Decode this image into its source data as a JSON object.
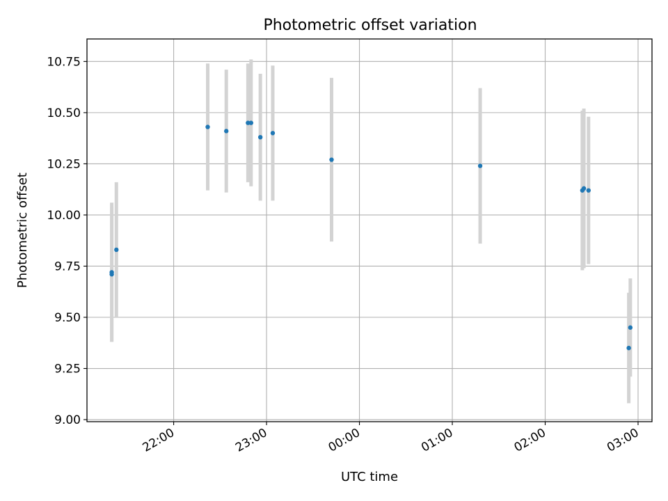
{
  "chart_data": {
    "type": "scatter",
    "title": "Photometric offset variation",
    "xlabel": "UTC time",
    "ylabel": "Photometric offset",
    "x_unit": "UTC clock time (hours after 00:00; values past midnight continue above 24)",
    "xlim": [
      "21:04",
      "03:09"
    ],
    "ylim": [
      8.99,
      10.86
    ],
    "x_ticks": [
      {
        "label": "22:00",
        "hour": 22
      },
      {
        "label": "23:00",
        "hour": 23
      },
      {
        "label": "00:00",
        "hour": 24
      },
      {
        "label": "01:00",
        "hour": 25
      },
      {
        "label": "02:00",
        "hour": 26
      },
      {
        "label": "03:00",
        "hour": 27
      }
    ],
    "y_ticks": [
      "9.00",
      "9.25",
      "9.50",
      "9.75",
      "10.00",
      "10.25",
      "10.50",
      "10.75"
    ],
    "grid": true,
    "errorbar_color": "#d3d3d3",
    "point_color": "#1f77b4",
    "series": [
      {
        "points": [
          {
            "time": "21:20",
            "y": 9.72,
            "err": 0.34
          },
          {
            "time": "21:20",
            "y": 9.71,
            "err": 0.33
          },
          {
            "time": "21:23",
            "y": 9.83,
            "err": 0.33
          },
          {
            "time": "22:22",
            "y": 10.43,
            "err": 0.31
          },
          {
            "time": "22:34",
            "y": 10.41,
            "err": 0.3
          },
          {
            "time": "22:48",
            "y": 10.45,
            "err": 0.29
          },
          {
            "time": "22:50",
            "y": 10.45,
            "err": 0.31
          },
          {
            "time": "22:56",
            "y": 10.38,
            "err": 0.31
          },
          {
            "time": "23:04",
            "y": 10.4,
            "err": 0.33
          },
          {
            "time": "23:42",
            "y": 10.27,
            "err": 0.4
          },
          {
            "time": "01:18",
            "y": 10.24,
            "err": 0.38
          },
          {
            "time": "02:24",
            "y": 10.12,
            "err": 0.39
          },
          {
            "time": "02:25",
            "y": 10.13,
            "err": 0.39
          },
          {
            "time": "02:28",
            "y": 10.12,
            "err": 0.36
          },
          {
            "time": "02:54",
            "y": 9.35,
            "err": 0.27
          },
          {
            "time": "02:55",
            "y": 9.45,
            "err": 0.24
          }
        ]
      }
    ]
  }
}
